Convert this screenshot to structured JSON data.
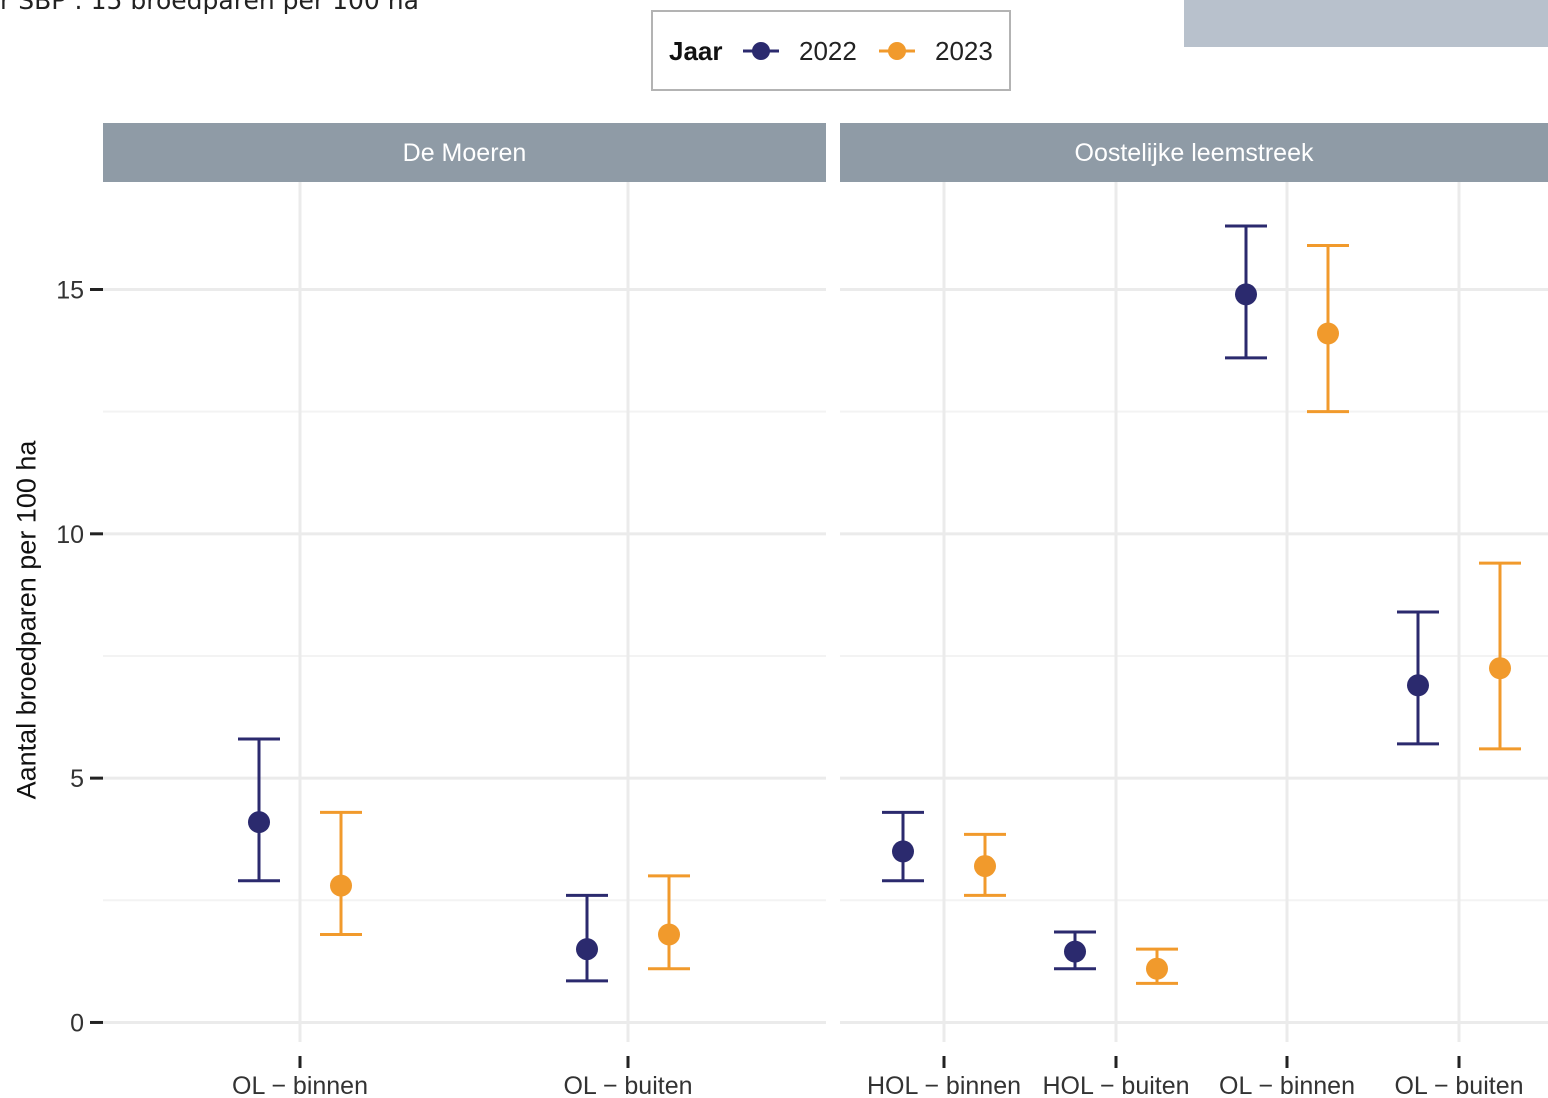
{
  "header": {
    "top_text": "r SBP : 15 broedparen per 100 ha"
  },
  "chart_data": {
    "type": "scatter",
    "subtype": "point-range",
    "ylabel": "Aantal broedparen per 100 ha",
    "ylim": [
      -0.4,
      17.2
    ],
    "yticks": [
      0,
      5,
      10,
      15
    ],
    "grid": true,
    "legend": {
      "title": "Jaar",
      "position": "top",
      "entries": [
        {
          "label": "2022",
          "color": "#2b2a6e"
        },
        {
          "label": "2023",
          "color": "#f19a2c"
        }
      ]
    },
    "panels": [
      {
        "title": "De Moeren",
        "categories": [
          "OL − binnen",
          "OL − buiten"
        ],
        "series": [
          {
            "name": "2022",
            "color": "#2b2a6e",
            "points": [
              {
                "y": 4.1,
                "low": 2.9,
                "high": 5.8
              },
              {
                "y": 1.5,
                "low": 0.85,
                "high": 2.6
              }
            ]
          },
          {
            "name": "2023",
            "color": "#f19a2c",
            "points": [
              {
                "y": 2.8,
                "low": 1.8,
                "high": 4.3
              },
              {
                "y": 1.8,
                "low": 1.1,
                "high": 3.0
              }
            ]
          }
        ]
      },
      {
        "title": "Oostelijke leemstreek",
        "categories": [
          "HOL − binnen",
          "HOL − buiten",
          "OL − binnen",
          "OL − buiten"
        ],
        "series": [
          {
            "name": "2022",
            "color": "#2b2a6e",
            "points": [
              {
                "y": 3.5,
                "low": 2.9,
                "high": 4.3
              },
              {
                "y": 1.45,
                "low": 1.1,
                "high": 1.85
              },
              {
                "y": 14.9,
                "low": 13.6,
                "high": 16.3
              },
              {
                "y": 6.9,
                "low": 5.7,
                "high": 8.4
              }
            ]
          },
          {
            "name": "2023",
            "color": "#f19a2c",
            "points": [
              {
                "y": 3.2,
                "low": 2.6,
                "high": 3.85
              },
              {
                "y": 1.1,
                "low": 0.8,
                "high": 1.5
              },
              {
                "y": 14.1,
                "low": 12.5,
                "high": 15.9
              },
              {
                "y": 7.25,
                "low": 5.6,
                "high": 9.4
              }
            ]
          }
        ]
      }
    ]
  }
}
